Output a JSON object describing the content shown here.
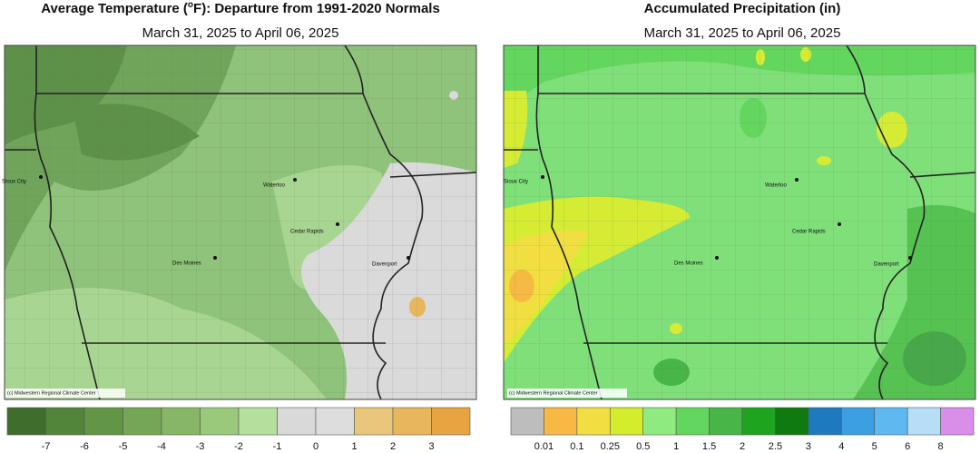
{
  "panels": [
    {
      "title_before": "Average Temperature (",
      "title_sup": "o",
      "title_after": "F): Departure from 1991-2020 Normals",
      "subtitle": "March 31, 2025 to April 06, 2025",
      "cities": [
        "Sioux City",
        "Waterloo",
        "Cedar Rapids",
        "Des Moines",
        "Davenport"
      ],
      "credit": "(c) Midwestern Regional Climate Center",
      "legend": {
        "labels": [
          -7,
          -6,
          -5,
          -4,
          -3,
          -2,
          -1,
          0,
          1,
          2,
          3
        ],
        "colors": [
          "#3f6e2c",
          "#52853a",
          "#639547",
          "#75a655",
          "#87b766",
          "#9bc97b",
          "#b4df9c",
          "#d9d9d9",
          "#dddddd",
          "#e8c77c",
          "#e8b65c",
          "#e8a440"
        ]
      }
    },
    {
      "title": "Accumulated Precipitation (in)",
      "subtitle": "March 31, 2025 to April 06, 2025",
      "cities": [
        "Sioux City",
        "Waterloo",
        "Cedar Rapids",
        "Des Moines",
        "Davenport"
      ],
      "credit": "(c) Midwestern Regional Climate Center",
      "legend": {
        "labels": [
          0.01,
          0.1,
          0.25,
          0.5,
          1,
          1.5,
          2,
          2.5,
          3,
          4,
          5,
          6,
          8
        ],
        "colors": [
          "#bdbdbd",
          "#f6ba44",
          "#f1df42",
          "#d3ec2c",
          "#8feb80",
          "#63d65e",
          "#47b547",
          "#1fa41f",
          "#0f7a10",
          "#1f79bd",
          "#3b9fe2",
          "#5db9f0",
          "#b7def7",
          "#d98ee9"
        ]
      }
    }
  ]
}
